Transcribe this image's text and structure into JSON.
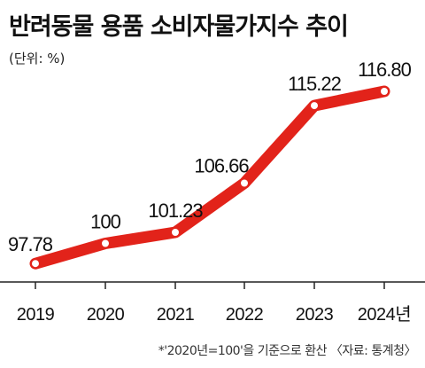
{
  "header": {
    "title": "반려동물 용품 소비자물가지수 추이",
    "unit": "(단위: %)"
  },
  "footer": {
    "note": "*'2020년=100'을 기준으로 환산 〈자료: 통계청〉"
  },
  "colors": {
    "line": "#e2231a",
    "marker_fill": "#ffffff",
    "axis": "#222222"
  },
  "chart_data": {
    "type": "line",
    "title": "반려동물 용품 소비자물가지수 추이",
    "categories": [
      "2019",
      "2020",
      "2021",
      "2022",
      "2023",
      "2024년"
    ],
    "values": [
      97.78,
      100,
      101.23,
      106.66,
      115.22,
      116.8
    ],
    "value_labels": [
      "97.78",
      "100",
      "101.23",
      "106.66",
      "115.22",
      "116.80"
    ],
    "unit": "(단위: %)",
    "grid": false,
    "legend": "none"
  }
}
